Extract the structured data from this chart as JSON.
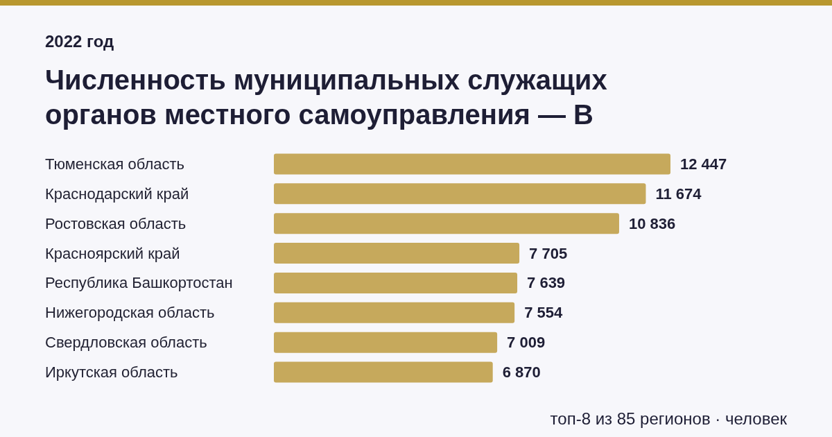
{
  "chart_data": {
    "type": "bar",
    "orientation": "horizontal",
    "title": "Численность муниципальных служащих органов местного самоуправления — В",
    "subtitle": "2022 год",
    "categories": [
      "Тюменская область",
      "Краснодарский край",
      "Ростовская область",
      "Красноярский край",
      "Республика Башкортостан",
      "Нижегородская область",
      "Свердловская область",
      "Иркутская область"
    ],
    "values": [
      12447,
      11674,
      10836,
      7705,
      7639,
      7554,
      7009,
      6870
    ],
    "value_labels": [
      "12 447",
      "11 674",
      "10 836",
      "7 705",
      "7 639",
      "7 554",
      "7 009",
      "6 870"
    ],
    "color": "#c6a95c",
    "annotations": [
      "топ-8 из 85 регионов · человек"
    ]
  }
}
